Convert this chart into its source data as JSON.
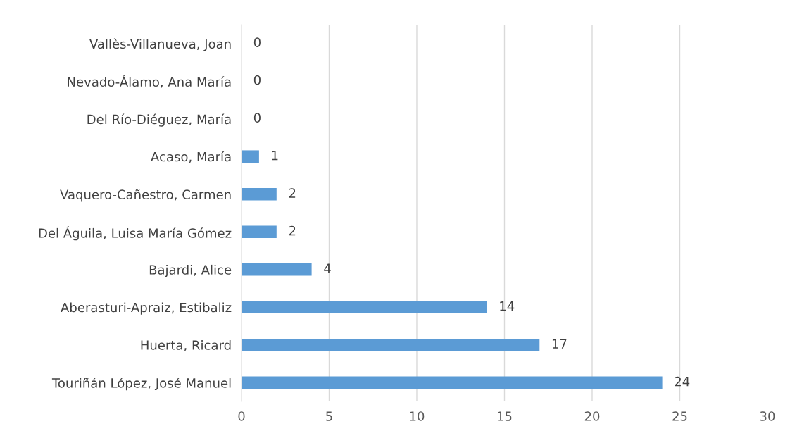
{
  "chart_data": {
    "type": "bar",
    "orientation": "horizontal",
    "categories": [
      "Vallès-Villanueva, Joan",
      "Nevado-Álamo, Ana María",
      "Del Río-Diéguez, María",
      "Acaso, María",
      "Vaquero-Cañestro, Carmen",
      "Del Águila, Luisa María Gómez",
      "Bajardi, Alice",
      "Aberasturi-Apraiz, Estibaliz",
      "Huerta, Ricard",
      "Touriñán López, José Manuel"
    ],
    "values": [
      0,
      0,
      0,
      1,
      2,
      2,
      4,
      14,
      17,
      24
    ],
    "color": "#5b9bd5",
    "xlim": [
      0,
      30
    ],
    "xticks": [
      0,
      5,
      10,
      15,
      20,
      25,
      30
    ],
    "grid": "x",
    "data_labels": true
  }
}
